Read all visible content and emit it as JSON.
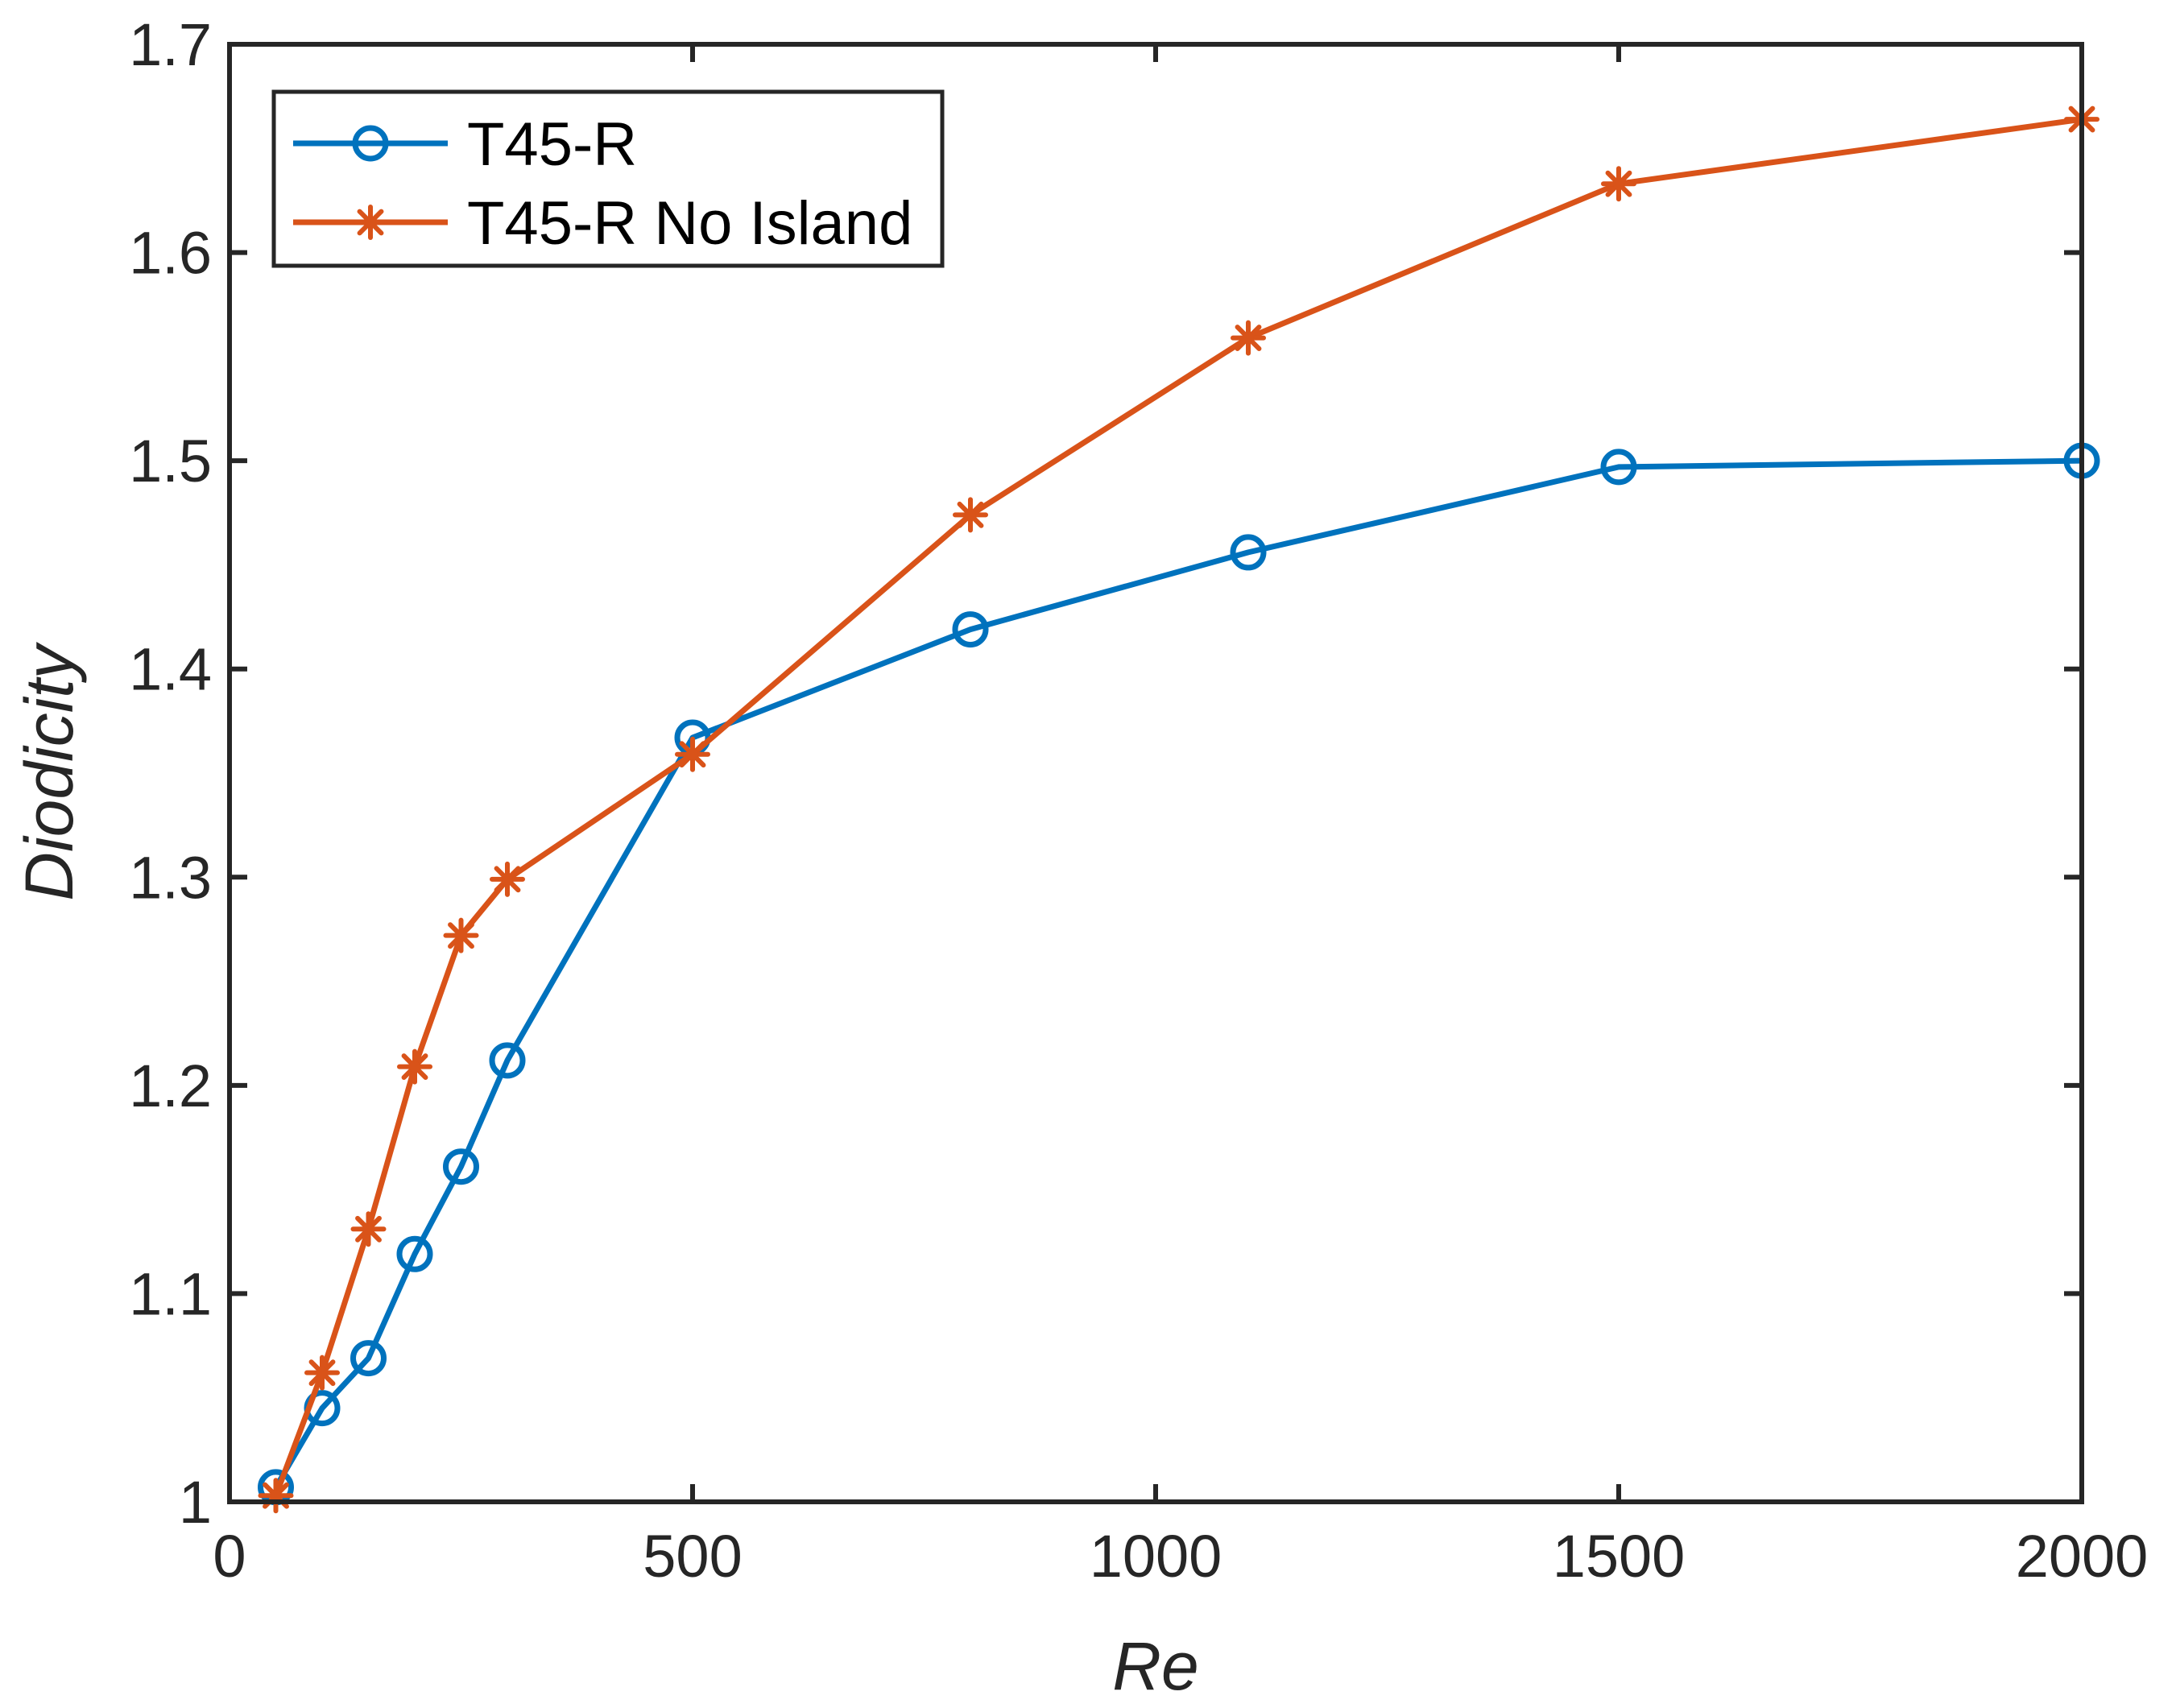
{
  "chart_data": {
    "type": "line",
    "title": "",
    "xlabel": "Re",
    "ylabel": "Diodicity",
    "xlim": [
      0,
      2000
    ],
    "ylim": [
      1,
      1.7
    ],
    "xticks": [
      0,
      500,
      1000,
      1500,
      2000
    ],
    "xtick_labels": [
      "0",
      "500",
      "1000",
      "1500",
      "2000"
    ],
    "yticks": [
      1,
      1.1,
      1.2,
      1.3,
      1.4,
      1.5,
      1.6,
      1.7
    ],
    "ytick_labels": [
      "1",
      "1.1",
      "1.2",
      "1.3",
      "1.4",
      "1.5",
      "1.6",
      "1.7"
    ],
    "grid": false,
    "legend_position": "top-left",
    "series": [
      {
        "name": "T45-R",
        "color": "#0072BD",
        "marker": "circle",
        "x": [
          50,
          100,
          150,
          200,
          250,
          300,
          500,
          800,
          1100,
          1500,
          2000
        ],
        "y": [
          1.007,
          1.045,
          1.069,
          1.119,
          1.161,
          1.212,
          1.367,
          1.419,
          1.456,
          1.497,
          1.5
        ]
      },
      {
        "name": "T45-R No Island",
        "color": "#D95319",
        "marker": "asterisk",
        "x": [
          50,
          100,
          150,
          200,
          250,
          300,
          500,
          800,
          1100,
          1500,
          2000
        ],
        "y": [
          1.003,
          1.062,
          1.131,
          1.209,
          1.272,
          1.299,
          1.359,
          1.474,
          1.559,
          1.633,
          1.664
        ]
      }
    ]
  }
}
